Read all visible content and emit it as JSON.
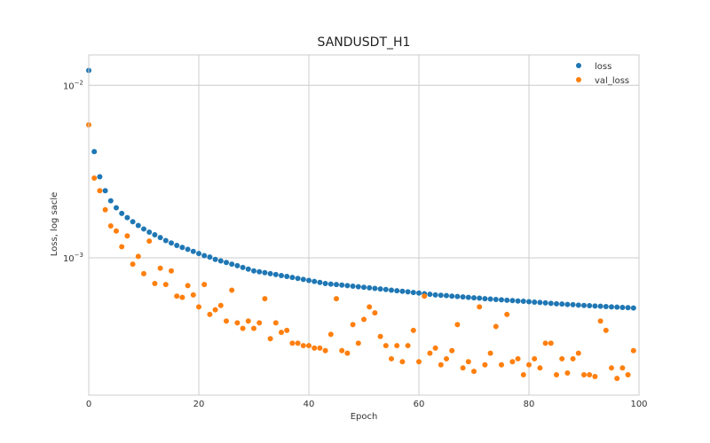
{
  "chart_data": {
    "type": "scatter",
    "title": "SANDUSDT_H1",
    "xlabel": "Epoch",
    "ylabel": "Loss, log sacle",
    "xlim": [
      0,
      100
    ],
    "ylim": [
      0.00016,
      0.015
    ],
    "yscale": "log",
    "grid": true,
    "legend_position": "top-right",
    "x_ticks": [
      "0",
      "20",
      "40",
      "60",
      "80",
      "100"
    ],
    "y_ticks": [
      {
        "base": "10",
        "exp": "−2",
        "value": 0.01
      },
      {
        "base": "10",
        "exp": "−3",
        "value": 0.001
      }
    ],
    "series": [
      {
        "name": "loss",
        "color": "#1f77b4",
        "x": [
          0,
          1,
          2,
          3,
          4,
          5,
          6,
          7,
          8,
          9,
          10,
          11,
          12,
          13,
          14,
          15,
          16,
          17,
          18,
          19,
          20,
          21,
          22,
          23,
          24,
          25,
          26,
          27,
          28,
          29,
          30,
          31,
          32,
          33,
          34,
          35,
          36,
          37,
          38,
          39,
          40,
          41,
          42,
          43,
          44,
          45,
          46,
          47,
          48,
          49,
          50,
          51,
          52,
          53,
          54,
          55,
          56,
          57,
          58,
          59,
          60,
          61,
          62,
          63,
          64,
          65,
          66,
          67,
          68,
          69,
          70,
          71,
          72,
          73,
          74,
          75,
          76,
          77,
          78,
          79,
          80,
          81,
          82,
          83,
          84,
          85,
          86,
          87,
          88,
          89,
          90,
          91,
          92,
          93,
          94,
          95,
          96,
          97,
          98,
          99
        ],
        "y": [
          0.0122,
          0.00413,
          0.00295,
          0.00245,
          0.00214,
          0.00195,
          0.00181,
          0.00171,
          0.00162,
          0.00154,
          0.00147,
          0.00141,
          0.00136,
          0.00131,
          0.00126,
          0.00122,
          0.00118,
          0.00115,
          0.00112,
          0.00109,
          0.00106,
          0.00103,
          0.00101,
          0.00098,
          0.00096,
          0.00094,
          0.00092,
          0.0009,
          0.00088,
          0.00086,
          0.00084,
          0.00083,
          0.00082,
          0.00081,
          0.0008,
          0.00079,
          0.00078,
          0.00077,
          0.00076,
          0.00075,
          0.00074,
          0.00073,
          0.00072,
          0.00071,
          0.000705,
          0.0007,
          0.000695,
          0.00069,
          0.000685,
          0.00068,
          0.000675,
          0.00067,
          0.000665,
          0.00066,
          0.000655,
          0.00065,
          0.000645,
          0.00064,
          0.000635,
          0.00063,
          0.000625,
          0.00062,
          0.000615,
          0.00061,
          0.000607,
          0.000604,
          0.0006,
          0.000597,
          0.000594,
          0.00059,
          0.000587,
          0.000584,
          0.00058,
          0.000577,
          0.000574,
          0.000571,
          0.000568,
          0.000565,
          0.000562,
          0.00056,
          0.000557,
          0.000554,
          0.000551,
          0.000548,
          0.000545,
          0.000542,
          0.00054,
          0.000537,
          0.000535,
          0.000532,
          0.00053,
          0.000528,
          0.000526,
          0.000524,
          0.000522,
          0.00052,
          0.000518,
          0.000516,
          0.000514,
          0.000512
        ]
      },
      {
        "name": "val_loss",
        "color": "#ff7f0e",
        "x": [
          0,
          1,
          2,
          3,
          4,
          5,
          6,
          7,
          8,
          9,
          10,
          11,
          12,
          13,
          14,
          15,
          16,
          17,
          18,
          19,
          20,
          21,
          22,
          23,
          24,
          25,
          26,
          27,
          28,
          29,
          30,
          31,
          32,
          33,
          34,
          35,
          36,
          37,
          38,
          39,
          40,
          41,
          42,
          43,
          44,
          45,
          46,
          47,
          48,
          49,
          50,
          51,
          52,
          53,
          54,
          55,
          56,
          57,
          58,
          59,
          60,
          61,
          62,
          63,
          64,
          65,
          66,
          67,
          68,
          69,
          70,
          71,
          72,
          73,
          74,
          75,
          76,
          77,
          78,
          79,
          80,
          81,
          82,
          83,
          84,
          85,
          86,
          87,
          88,
          89,
          90,
          91,
          92,
          93,
          94,
          95,
          96,
          97,
          98,
          99
        ],
        "y": [
          0.0059,
          0.0029,
          0.00245,
          0.0019,
          0.00153,
          0.00143,
          0.00116,
          0.00134,
          0.00092,
          0.00102,
          0.00081,
          0.00125,
          0.00071,
          0.00087,
          0.0007,
          0.00084,
          0.0006,
          0.00059,
          0.00069,
          0.00061,
          0.00052,
          0.0007,
          0.00047,
          0.0005,
          0.00053,
          0.00043,
          0.00065,
          0.00042,
          0.00039,
          0.00043,
          0.00039,
          0.00042,
          0.00058,
          0.00034,
          0.00042,
          0.00037,
          0.00038,
          0.00032,
          0.00032,
          0.00031,
          0.00031,
          0.0003,
          0.0003,
          0.00029,
          0.00036,
          0.00058,
          0.00029,
          0.00028,
          0.00041,
          0.00032,
          0.00044,
          0.00052,
          0.00048,
          0.00035,
          0.00031,
          0.00026,
          0.00031,
          0.00025,
          0.00031,
          0.00038,
          0.00025,
          0.0006,
          0.00028,
          0.0003,
          0.00024,
          0.00026,
          0.00029,
          0.00041,
          0.00023,
          0.00025,
          0.00022,
          0.00052,
          0.00024,
          0.00028,
          0.0004,
          0.00024,
          0.00047,
          0.00025,
          0.00026,
          0.00021,
          0.00024,
          0.00026,
          0.00023,
          0.00032,
          0.00032,
          0.00021,
          0.00026,
          0.000215,
          0.00026,
          0.00028,
          0.00021,
          0.00021,
          0.000205,
          0.00043,
          0.00038,
          0.00023,
          0.0002,
          0.00023,
          0.00021,
          0.00029
        ]
      }
    ]
  }
}
